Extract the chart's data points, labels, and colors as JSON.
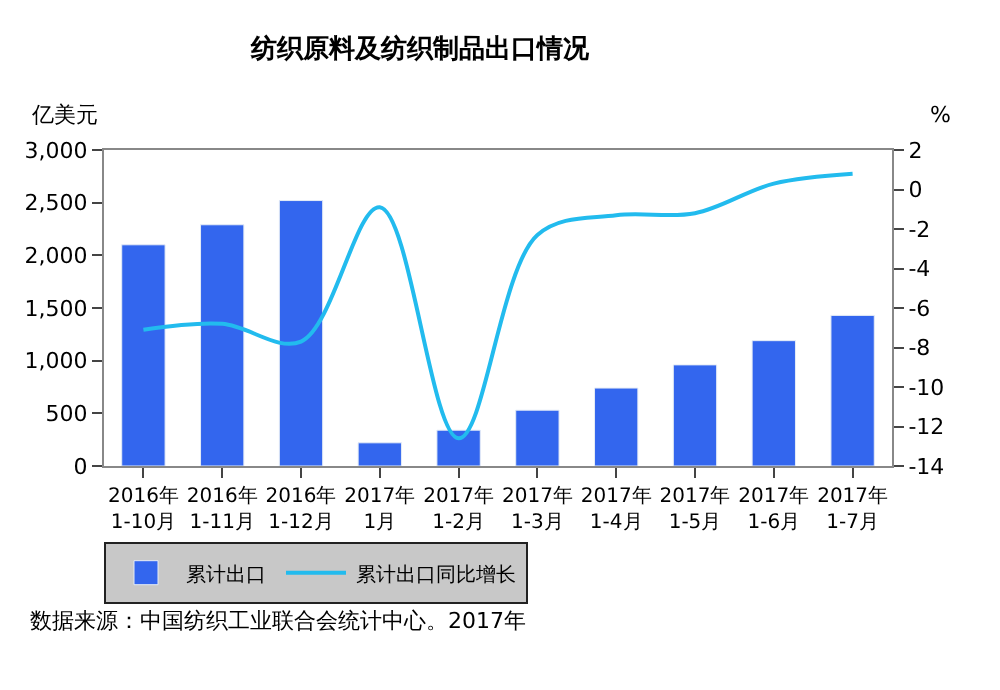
{
  "chart_data": {
    "type": "bar",
    "title": "纺织原料及纺织制品出口情况",
    "ylabel": "亿美元",
    "y2label": "%",
    "categories": [
      "2016年\n1-10月",
      "2016年\n1-11月",
      "2016年\n1-12月",
      "2017年\n1月",
      "2017年\n1-2月",
      "2017年\n1-3月",
      "2017年\n1-4月",
      "2017年\n1-5月",
      "2017年\n1-6月",
      "2017年\n1-7月"
    ],
    "series": [
      {
        "name": "累计出口",
        "type": "bar",
        "color": "#3366ee",
        "values": [
          2100,
          2290,
          2520,
          220,
          340,
          530,
          740,
          960,
          1190,
          1430
        ]
      },
      {
        "name": "累计出口同比增长",
        "type": "line",
        "axis": "y2",
        "color": "#22bbee",
        "line_style": "solid",
        "values": [
          -7.1,
          -6.8,
          -7.7,
          -0.9,
          -12.6,
          -2.3,
          -1.3,
          -1.2,
          0.3,
          0.8
        ]
      }
    ],
    "ylim": [
      0,
      3000
    ],
    "yticks": [
      {
        "value": 0,
        "label": "0"
      },
      {
        "value": 500,
        "label": "500"
      },
      {
        "value": 1000,
        "label": "1,000"
      },
      {
        "value": 1500,
        "label": "1,500"
      },
      {
        "value": 2000,
        "label": "2,000"
      },
      {
        "value": 2500,
        "label": "2,500"
      },
      {
        "value": 3000,
        "label": "3,000"
      }
    ],
    "y2lim": [
      -14,
      2
    ],
    "y2ticks": [
      -14,
      -12,
      -10,
      -8,
      -6,
      -4,
      -2,
      0,
      2
    ],
    "legend": "bottom",
    "marker": "none",
    "annotations": [
      "数据来源：中国纺织工业联合会统计中心。2017年"
    ]
  }
}
